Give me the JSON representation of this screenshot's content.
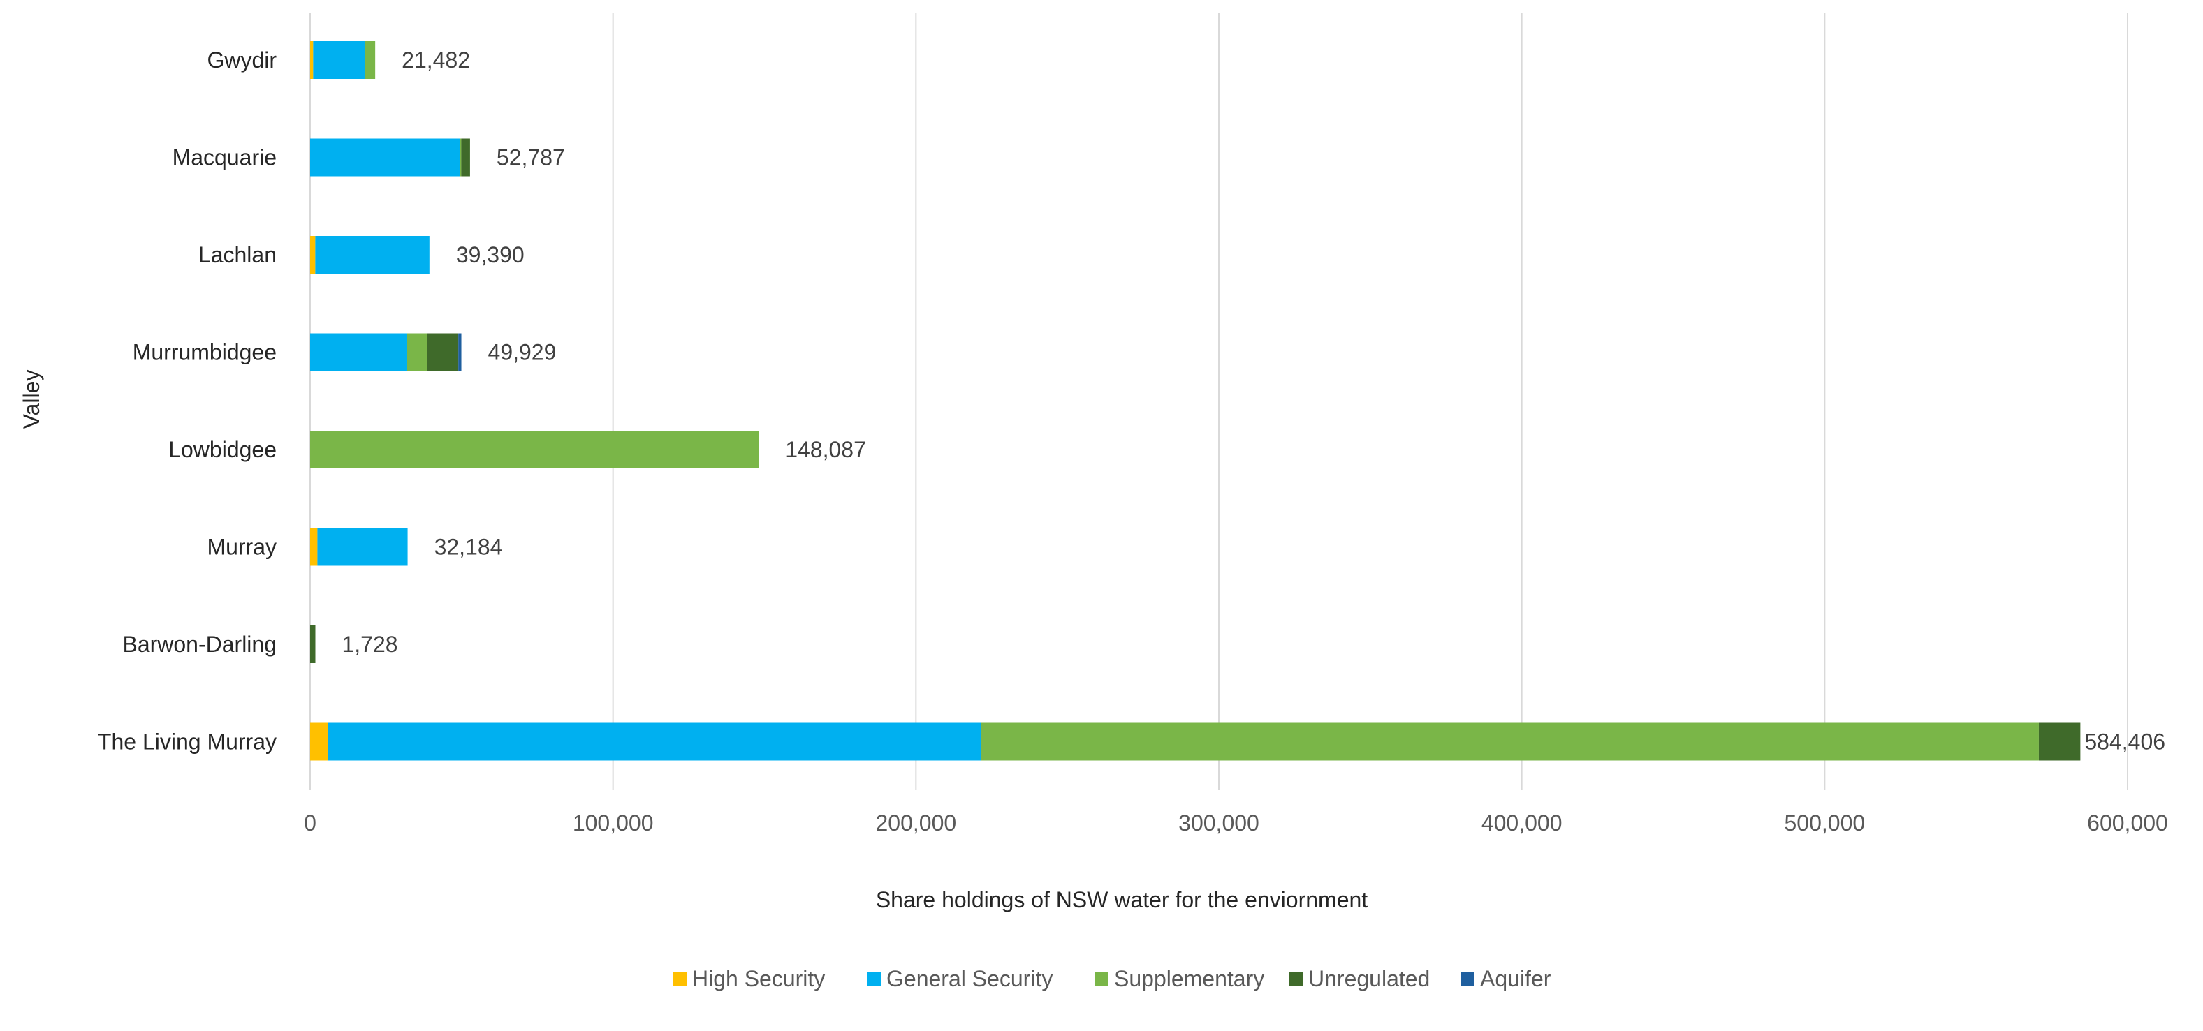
{
  "chart_data": {
    "type": "bar",
    "orientation": "horizontal",
    "stacked": true,
    "title": "",
    "xlabel": "Share holdings of NSW water for the enviornment",
    "ylabel": "Valley",
    "xlim": [
      0,
      600000
    ],
    "x_ticks": [
      0,
      100000,
      200000,
      300000,
      400000,
      500000,
      600000
    ],
    "x_tick_labels": [
      "0",
      "100,000",
      "200,000",
      "300,000",
      "400,000",
      "500,000",
      "600,000"
    ],
    "grid": "vertical",
    "legend_position": "bottom",
    "categories": [
      "Gwydir",
      "Macquarie",
      "Lachlan",
      "Murrumbidgee",
      "Lowbidgee",
      "Murray",
      "Barwon-Darling",
      "The Living Murray"
    ],
    "series": [
      {
        "name": "High Security",
        "color": "#FFC000",
        "values": [
          1000,
          0,
          1700,
          0,
          0,
          2400,
          0,
          5800
        ]
      },
      {
        "name": "General Security",
        "color": "#00B0F0",
        "values": [
          17000,
          49400,
          37690,
          32000,
          0,
          29784,
          0,
          215700
        ]
      },
      {
        "name": "Supplementary",
        "color": "#7AB648",
        "values": [
          3482,
          500,
          0,
          6600,
          148087,
          0,
          0,
          349200
        ]
      },
      {
        "name": "Unregulated",
        "color": "#3F6A2A",
        "values": [
          0,
          2887,
          0,
          10329,
          0,
          0,
          1728,
          13706
        ]
      },
      {
        "name": "Aquifer",
        "color": "#1F5F9F",
        "values": [
          0,
          0,
          0,
          1000,
          0,
          0,
          0,
          0
        ]
      }
    ],
    "totals": [
      21482,
      52787,
      39390,
      49929,
      148087,
      32184,
      1728,
      584406
    ],
    "total_labels": [
      "21,482",
      "52,787",
      "39,390",
      "49,929",
      "148,087",
      "32,184",
      "1,728",
      "584,406"
    ]
  }
}
